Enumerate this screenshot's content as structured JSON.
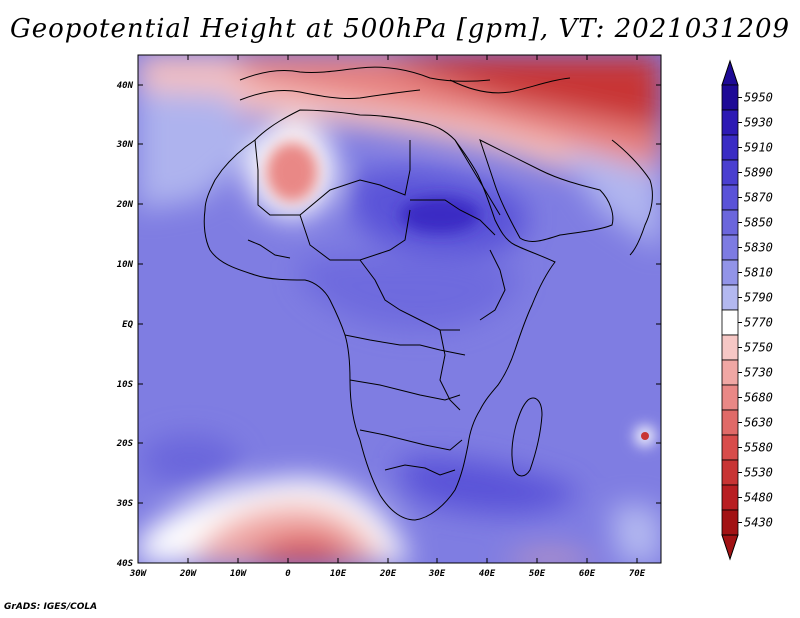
{
  "title": "Geopotential Height at 500hPa [gpm], VT: 2021031209",
  "credit": "GrADS: IGES/COLA",
  "map": {
    "lat_labels": [
      "40N",
      "30N",
      "20N",
      "10N",
      "EQ",
      "10S",
      "20S",
      "30S",
      "40S"
    ],
    "lon_labels": [
      "30W",
      "20W",
      "10W",
      "0",
      "10E",
      "20E",
      "30E",
      "40E",
      "50E",
      "60E",
      "70E"
    ]
  },
  "colorbar": {
    "levels": [
      "5950",
      "5930",
      "5910",
      "5890",
      "5870",
      "5850",
      "5830",
      "5810",
      "5790",
      "5770",
      "5750",
      "5730",
      "5680",
      "5630",
      "5580",
      "5530",
      "5480",
      "5430"
    ],
    "colors": [
      "#1e0a96",
      "#2d1ab4",
      "#3a2cc4",
      "#4a3fd0",
      "#5a52d8",
      "#6b66dc",
      "#7d7be2",
      "#9294e8",
      "#b3b8f0",
      "#ffffff",
      "#f6c7c5",
      "#f0a7a4",
      "#e98886",
      "#e06a68",
      "#d84c4b",
      "#c83434",
      "#b81e22",
      "#a21214"
    ]
  }
}
